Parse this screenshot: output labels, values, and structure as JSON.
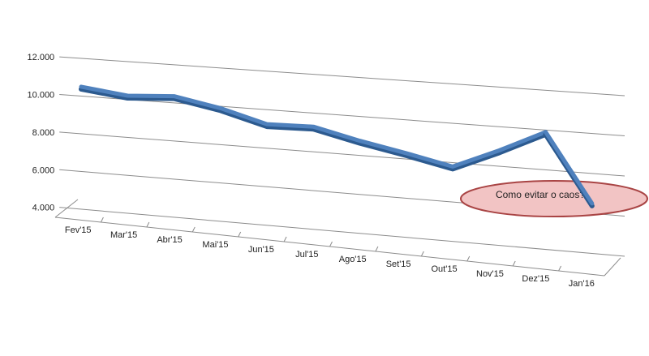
{
  "chart_data": {
    "type": "line",
    "categories": [
      "Fev'15",
      "Mar'15",
      "Abr'15",
      "Mai'15",
      "Jun'15",
      "Jul'15",
      "Ago'15",
      "Set'15",
      "Out'15",
      "Nov'15",
      "Dez'15",
      "Jan'16"
    ],
    "values": [
      10500,
      10200,
      10350,
      9900,
      9250,
      9300,
      8750,
      8300,
      7800,
      8800,
      9900,
      6500
    ],
    "yticks": [
      "4.000",
      "6.000",
      "8.000",
      "10.000",
      "12.000"
    ],
    "ylim": [
      4000,
      12000
    ],
    "grid": true,
    "legend": "none",
    "title": "",
    "xlabel": "",
    "ylabel": "",
    "annotation": "Como evitar o caos?",
    "colors": {
      "series": "#4f81bd",
      "series_dark": "#2c5a8f",
      "grid": "#8c8c8c",
      "callout_fill": "#f2c4c4",
      "callout_stroke": "#a94444"
    }
  }
}
